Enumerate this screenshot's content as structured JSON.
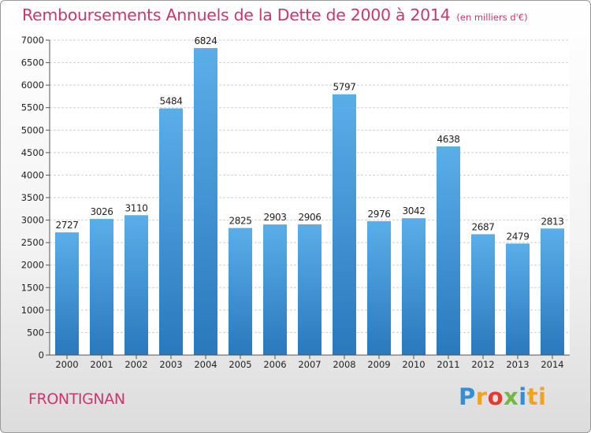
{
  "chart_data": {
    "type": "bar",
    "title": "Remboursements Annuels de la Dette de 2000 à 2014",
    "unit": "(en milliers d'€)",
    "categories": [
      "2000",
      "2001",
      "2002",
      "2003",
      "2004",
      "2005",
      "2006",
      "2007",
      "2008",
      "2009",
      "2010",
      "2011",
      "2012",
      "2013",
      "2014"
    ],
    "values": [
      2727,
      3026,
      3110,
      5484,
      6824,
      2825,
      2903,
      2906,
      5797,
      2976,
      3042,
      4638,
      2687,
      2479,
      2813
    ],
    "value_labels": [
      "2727",
      "3026",
      "3110",
      "5484",
      "6824",
      "2825",
      "2903",
      "2906",
      "5797",
      "2976",
      "3042",
      "4638",
      "2687",
      "2479",
      "2813"
    ],
    "yticks": [
      0,
      500,
      1000,
      1500,
      2000,
      2500,
      3000,
      3500,
      4000,
      4500,
      5000,
      5500,
      6000,
      6500,
      7000
    ],
    "ytick_labels": [
      "0",
      "500",
      "1000",
      "1500",
      "2000",
      "2500",
      "3000",
      "3500",
      "4000",
      "4500",
      "5000",
      "5500",
      "6000",
      "6500",
      "7000"
    ],
    "ylim": [
      0,
      7000
    ],
    "grid": true,
    "xlabel": "",
    "ylabel": "",
    "colors": {
      "bar_top": "#5aaee8",
      "bar_bottom": "#2a78bd",
      "grid": "#cfcfcf"
    }
  },
  "commune": "FRONTIGNAN",
  "logo": {
    "text": "Proxiti",
    "letters": [
      "P",
      "r",
      "o",
      "x",
      "i",
      "ti"
    ]
  }
}
